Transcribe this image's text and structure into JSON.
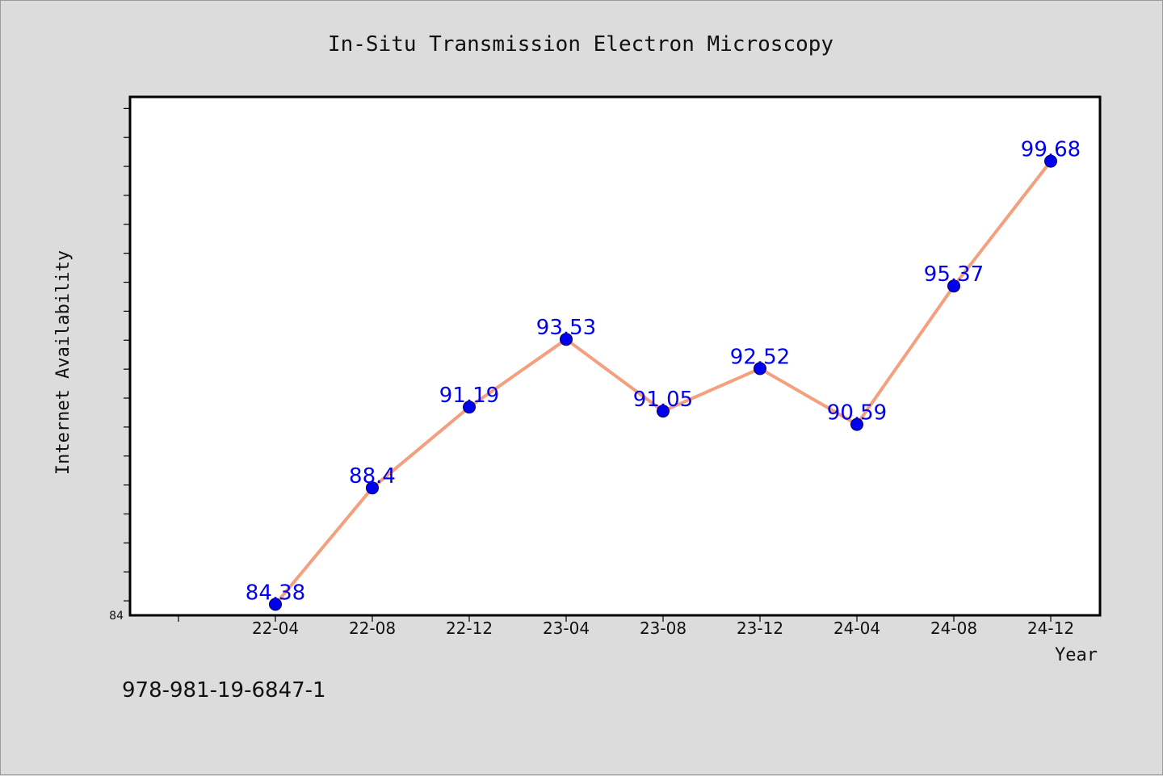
{
  "chart_data": {
    "type": "line",
    "title": "In-Situ Transmission Electron Microscopy",
    "xlabel": "Year",
    "ylabel": "Internet Availability",
    "categories": [
      "22-04",
      "22-08",
      "22-12",
      "23-04",
      "23-08",
      "23-12",
      "24-04",
      "24-08",
      "24-12"
    ],
    "series": [
      {
        "values": [
          84.38,
          88.4,
          91.19,
          93.53,
          91.05,
          92.52,
          90.59,
          95.37,
          99.68
        ],
        "labels": [
          "84.38",
          "88.4",
          "91.19",
          "93.53",
          "91.05",
          "92.52",
          "90.59",
          "95.37",
          "99.68"
        ]
      }
    ],
    "ylim": [
      84,
      101.9
    ],
    "yticks_labeled": [
      "84"
    ],
    "grid": false,
    "line_color": "#f4a07e",
    "marker_color": "#0000ee",
    "label_color": "#0000ee"
  },
  "footnote": "978-981-19-6847-1"
}
